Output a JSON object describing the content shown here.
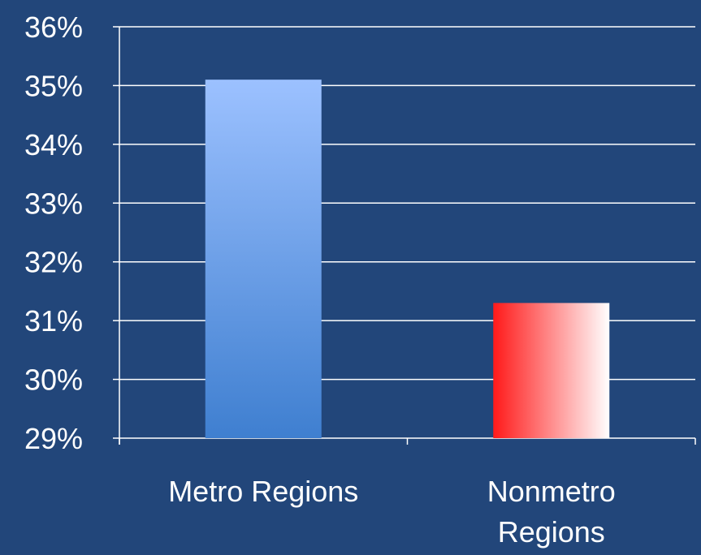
{
  "chart_data": {
    "type": "bar",
    "categories": [
      [
        "Metro Regions"
      ],
      [
        "Nonmetro",
        "Regions"
      ]
    ],
    "values": [
      35.1,
      31.3
    ],
    "ylim": [
      29,
      36
    ],
    "yticks": [
      29,
      30,
      31,
      32,
      33,
      34,
      35,
      36
    ],
    "ytick_labels": [
      "29%",
      "30%",
      "31%",
      "32%",
      "33%",
      "34%",
      "35%",
      "36%"
    ],
    "grid": true,
    "legend": "none",
    "colors": {
      "background": "#22467a",
      "grid": "#ffffff",
      "metro_bar_top": "#9cc1ff",
      "metro_bar_bottom": "#3f7fd0",
      "nonmetro_bar_left": "#ff1a1a",
      "nonmetro_bar_right": "#ffffff"
    }
  }
}
